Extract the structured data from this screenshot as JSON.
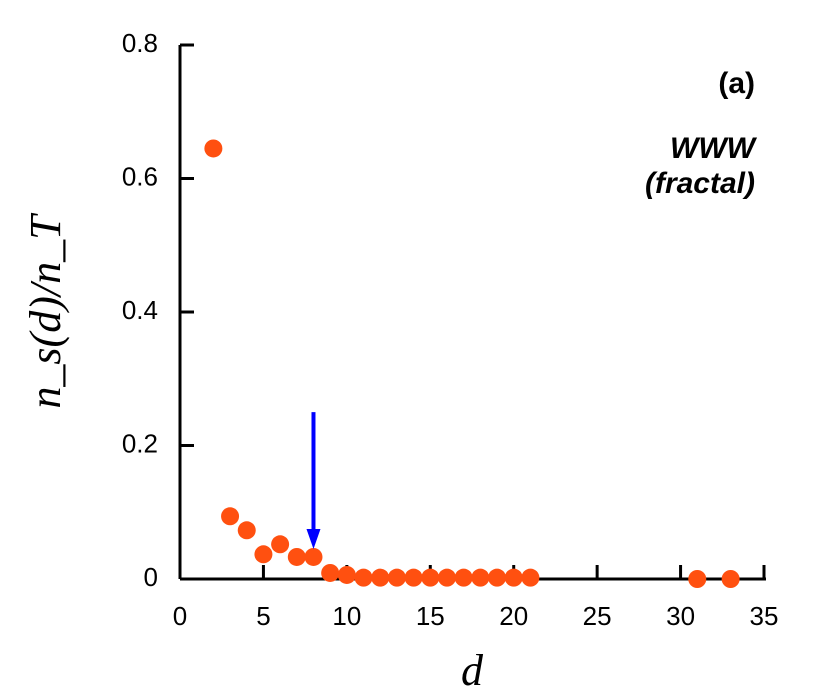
{
  "chart_data": {
    "type": "scatter",
    "xlabel": "d",
    "ylabel": "n_s(d)/n_T",
    "annotations": [
      "(a)",
      "WWW",
      "(fractal)"
    ],
    "x": [
      2,
      3,
      4,
      5,
      6,
      7,
      8,
      9,
      10,
      11,
      12,
      13,
      14,
      15,
      16,
      17,
      18,
      19,
      20,
      21,
      31,
      33
    ],
    "values": [
      0.645,
      0.094,
      0.073,
      0.037,
      0.052,
      0.033,
      0.033,
      0.009,
      0.006,
      0.002,
      0.002,
      0.002,
      0.002,
      0.002,
      0.002,
      0.002,
      0.002,
      0.002,
      0.002,
      0.002,
      0,
      0
    ],
    "color": "#ff5010",
    "arrow": {
      "x": 8,
      "from": 0.25,
      "to": 0.045,
      "color": "#0000ff"
    },
    "xlim": [
      0,
      35
    ],
    "xticks": [
      0,
      5,
      10,
      15,
      20,
      25,
      30,
      35
    ],
    "ylim": [
      0,
      0.8
    ],
    "yticks": [
      0,
      0.2,
      0.4,
      0.6,
      0.8
    ]
  }
}
